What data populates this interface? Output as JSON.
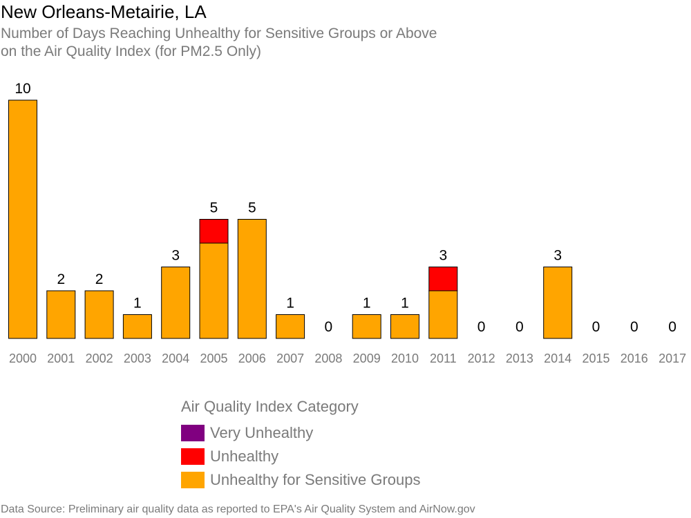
{
  "title": "New Orleans-Metairie, LA",
  "subtitle_lines": [
    "Number of Days Reaching Unhealthy for Sensitive Groups or Above",
    "on the Air Quality Index (for PM2.5 Only)"
  ],
  "source": "Data Source: Preliminary air quality data as reported to EPA's Air Quality System and AirNow.gov",
  "legend": {
    "title": "Air Quality Index Category",
    "items": [
      {
        "label": "Very Unhealthy",
        "color": "#800080"
      },
      {
        "label": "Unhealthy",
        "color": "#ff0000"
      },
      {
        "label": "Unhealthy for Sensitive Groups",
        "color": "#ffa500"
      }
    ]
  },
  "chart_data": {
    "type": "bar",
    "stacked": true,
    "categories": [
      "2000",
      "2001",
      "2002",
      "2003",
      "2004",
      "2005",
      "2006",
      "2007",
      "2008",
      "2009",
      "2010",
      "2011",
      "2012",
      "2013",
      "2014",
      "2015",
      "2016",
      "2017"
    ],
    "series": [
      {
        "name": "Unhealthy for Sensitive Groups",
        "color": "#ffa500",
        "values": [
          10,
          2,
          2,
          1,
          3,
          4,
          5,
          1,
          0,
          1,
          1,
          2,
          0,
          0,
          3,
          0,
          0,
          0
        ]
      },
      {
        "name": "Unhealthy",
        "color": "#ff0000",
        "values": [
          0,
          0,
          0,
          0,
          0,
          1,
          0,
          0,
          0,
          0,
          0,
          1,
          0,
          0,
          0,
          0,
          0,
          0
        ]
      },
      {
        "name": "Very Unhealthy",
        "color": "#800080",
        "values": [
          0,
          0,
          0,
          0,
          0,
          0,
          0,
          0,
          0,
          0,
          0,
          0,
          0,
          0,
          0,
          0,
          0,
          0
        ]
      }
    ],
    "totals": [
      10,
      2,
      2,
      1,
      3,
      5,
      5,
      1,
      0,
      1,
      1,
      3,
      0,
      0,
      3,
      0,
      0,
      0
    ],
    "ylim": [
      0,
      10
    ]
  }
}
